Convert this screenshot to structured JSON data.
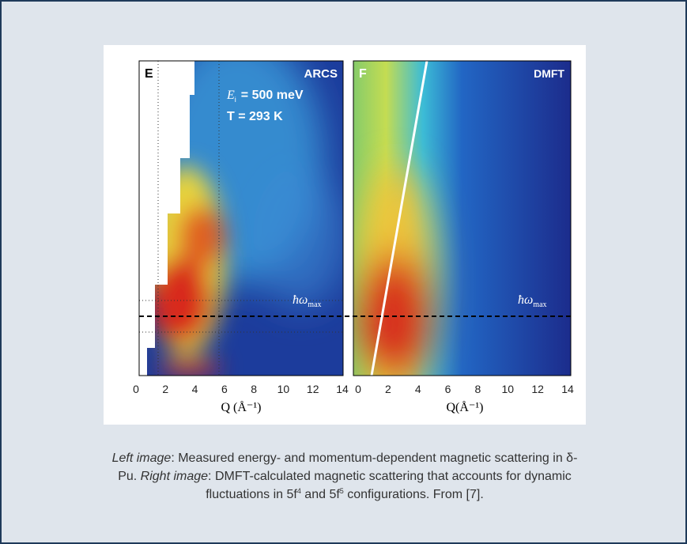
{
  "figure": {
    "left_panel": {
      "letter": "E",
      "instrument": "ARCS",
      "energy_symbol": "E",
      "energy_sub": "i",
      "energy_value": "= 500 meV",
      "temperature": "T = 293 K",
      "marker_symbol": "ħω",
      "marker_sub": "max",
      "x_ticks": [
        0,
        2,
        4,
        6,
        8,
        10,
        12,
        14
      ],
      "x_label": "Q (Å⁻¹)"
    },
    "right_panel": {
      "letter": "F",
      "method": "DMFT",
      "marker_symbol": "ħω",
      "marker_sub": "max",
      "x_ticks": [
        0,
        2,
        4,
        6,
        8,
        10,
        12,
        14
      ],
      "x_label": "Q(Å⁻¹)"
    }
  },
  "caption": {
    "left_label": "Left image",
    "left_text": ": Measured energy- and momentum-dependent magnetic scattering in δ-Pu. ",
    "right_label": "Right image",
    "right_text": ": DMFT-calculated magnetic scattering that accounts for dynamic fluctuations in 5f",
    "sup1": "4",
    "mid": " and 5f",
    "sup2": "5",
    "end": " configurations. From [7]."
  }
}
